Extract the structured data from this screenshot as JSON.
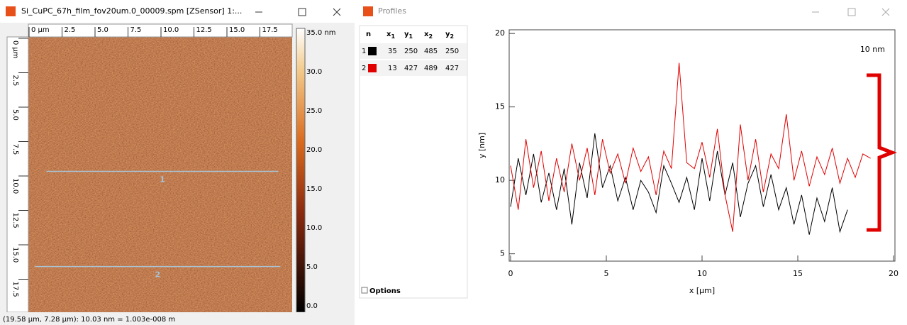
{
  "left_window": {
    "title": "Si_CuPC_67h_film_fov20um.0_00009.spm [ZSensor] 1:...",
    "x_ruler": [
      "0 µm",
      "2.5",
      "5.0",
      "7.5",
      "10.0",
      "12.5",
      "15.0",
      "17.5"
    ],
    "y_ruler": [
      "0 µm",
      "2.5",
      "5.0",
      "7.5",
      "10.0",
      "12.5",
      "15.0",
      "17.5"
    ],
    "colorbar_labels": [
      "35.0 nm",
      "30.0",
      "25.0",
      "20.0",
      "15.0",
      "10.0",
      "5.0",
      "0.0"
    ],
    "profile_labels": [
      "1",
      "2"
    ],
    "status": "(19.58 µm, 7.28 µm): 10.03 nm = 1.003e-008 m"
  },
  "right_window": {
    "title": "Profiles",
    "table": {
      "headers": [
        {
          "text": "n"
        },
        {
          "text": "x",
          "sub": "1"
        },
        {
          "text": "y",
          "sub": "1"
        },
        {
          "text": "x",
          "sub": "2"
        },
        {
          "text": "y",
          "sub": "2"
        }
      ],
      "rows": [
        [
          1,
          35,
          250,
          485,
          250
        ],
        [
          2,
          13,
          427,
          489,
          427
        ]
      ],
      "row_colors": [
        "#000000",
        "#e00000"
      ]
    },
    "options": "Options"
  },
  "chart_data": {
    "type": "line",
    "xlabel": "x [µm]",
    "ylabel": "y [nm]",
    "annotation": "10 nm",
    "xlim": [
      0,
      20
    ],
    "xticks": [
      0,
      5,
      10,
      15,
      20
    ],
    "ylim": [
      4.5,
      20.25
    ],
    "yticks": [
      5,
      10,
      15,
      20
    ],
    "series": [
      {
        "name": "1",
        "color": "#000000",
        "x": [
          0,
          0.4,
          0.8,
          1.2,
          1.6,
          2.0,
          2.4,
          2.8,
          3.2,
          3.6,
          4.0,
          4.4,
          4.8,
          5.2,
          5.6,
          6.0,
          6.4,
          6.8,
          7.2,
          7.6,
          8.0,
          8.4,
          8.8,
          9.2,
          9.6,
          10.0,
          10.4,
          10.8,
          11.2,
          11.6,
          12.0,
          12.4,
          12.8,
          13.2,
          13.6,
          14.0,
          14.4,
          14.8,
          15.2,
          15.6,
          16.0,
          16.4,
          16.8,
          17.2,
          17.6
        ],
        "values": [
          8.2,
          11.5,
          9.0,
          11.8,
          8.5,
          10.5,
          8.0,
          10.8,
          7.0,
          11.2,
          8.8,
          13.2,
          9.5,
          11.0,
          8.6,
          10.2,
          8.0,
          10.0,
          9.2,
          7.8,
          11.0,
          9.8,
          8.5,
          10.2,
          8.0,
          11.5,
          8.6,
          12.0,
          9.0,
          11.2,
          7.5,
          9.8,
          11.0,
          8.2,
          10.4,
          8.0,
          9.5,
          7.0,
          9.0,
          6.3,
          8.8,
          7.2,
          9.5,
          6.5,
          8.0
        ]
      },
      {
        "name": "2",
        "color": "#e00000",
        "x": [
          0,
          0.4,
          0.8,
          1.2,
          1.6,
          2.0,
          2.4,
          2.8,
          3.2,
          3.6,
          4.0,
          4.4,
          4.8,
          5.2,
          5.6,
          6.0,
          6.4,
          6.8,
          7.2,
          7.6,
          8.0,
          8.4,
          8.8,
          9.2,
          9.6,
          10.0,
          10.4,
          10.8,
          11.2,
          11.6,
          12.0,
          12.4,
          12.8,
          13.2,
          13.6,
          14.0,
          14.4,
          14.8,
          15.2,
          15.6,
          16.0,
          16.4,
          16.8,
          17.2,
          17.6,
          18.0,
          18.4,
          18.8
        ],
        "values": [
          11.0,
          8.0,
          12.8,
          9.5,
          12.0,
          8.6,
          11.5,
          9.2,
          12.5,
          10.0,
          12.2,
          9.0,
          12.8,
          10.5,
          11.8,
          9.8,
          12.2,
          10.6,
          11.6,
          9.0,
          12.0,
          10.8,
          18.0,
          11.2,
          10.8,
          12.6,
          10.2,
          13.5,
          9.0,
          6.5,
          13.8,
          10.0,
          12.8,
          9.2,
          11.8,
          10.8,
          14.5,
          10.0,
          12.0,
          9.6,
          11.6,
          10.4,
          12.2,
          9.8,
          11.5,
          10.2,
          11.8,
          11.5
        ]
      }
    ]
  }
}
